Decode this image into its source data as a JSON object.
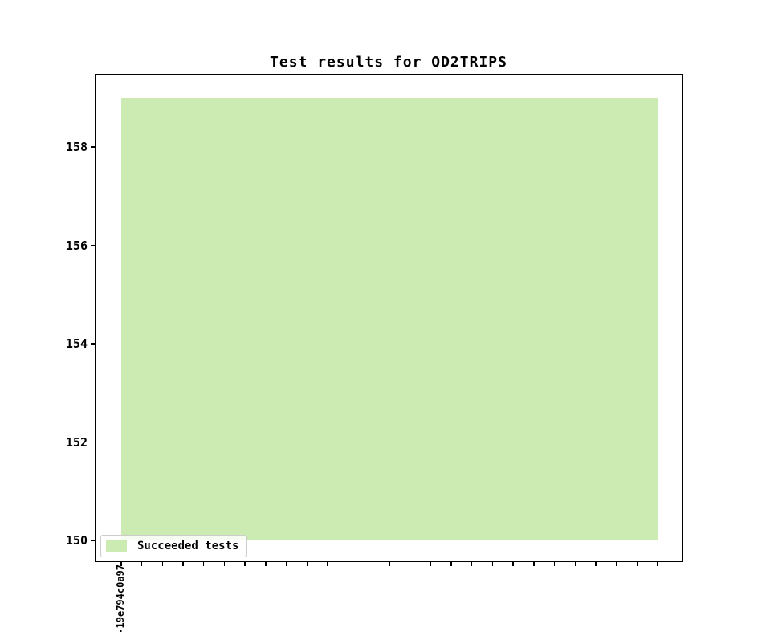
{
  "figure": {
    "title": "Test results for OD2TRIPS"
  },
  "legend": {
    "items": [
      {
        "label": "Succeeded tests",
        "color": "#ccebb3"
      }
    ]
  },
  "chart_data": {
    "type": "bar",
    "title": "Test results for OD2TRIPS",
    "categories": [
      "-19e794c0a97",
      "",
      "",
      "",
      "",
      "",
      "",
      "",
      "",
      "",
      "",
      "",
      "",
      "",
      "",
      "",
      "",
      "",
      "",
      "",
      "",
      "",
      "",
      "",
      "",
      "",
      ""
    ],
    "series": [
      {
        "name": "Succeeded tests",
        "color": "#ccebb3",
        "values": [
          159,
          159,
          159,
          159,
          159,
          159,
          159,
          159,
          159,
          159,
          159,
          159,
          159,
          159,
          159,
          159,
          159,
          159,
          159,
          159,
          159,
          159,
          159,
          159,
          159,
          159,
          159
        ]
      }
    ],
    "xlabel": "",
    "ylabel": "",
    "yticks": [
      150,
      152,
      154,
      156,
      158
    ],
    "ylim": [
      149.6,
      159.5
    ],
    "bar_baseline": 150,
    "grid": false,
    "legend_position": "lower left"
  }
}
